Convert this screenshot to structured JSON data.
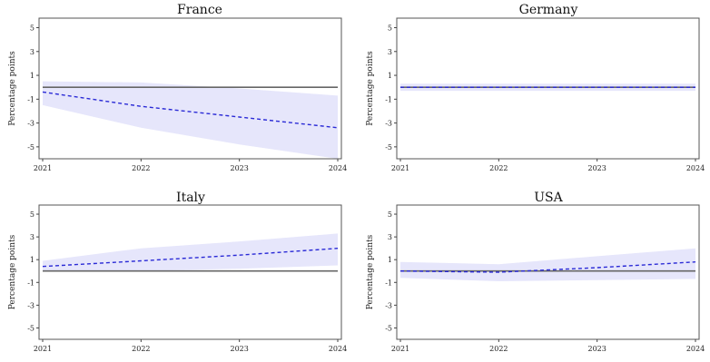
{
  "chart_data": [
    {
      "type": "line",
      "title": "France",
      "ylabel": "Percentage points",
      "x": [
        2021,
        2022,
        2023,
        2024
      ],
      "xticks": [
        "2021",
        "2022",
        "2023",
        "2024"
      ],
      "yticks": [
        5,
        3,
        1,
        -1,
        -3,
        -5
      ],
      "ylim": [
        -6,
        5.8
      ],
      "series": [
        {
          "values": [
            0,
            0,
            0,
            0
          ]
        },
        {
          "values": [
            -0.4,
            -1.6,
            -2.5,
            -3.4
          ]
        },
        {
          "lower": [
            -1.5,
            -3.4,
            -4.8,
            -6.0
          ],
          "upper": [
            0.5,
            0.4,
            -0.1,
            -0.7
          ]
        }
      ]
    },
    {
      "type": "line",
      "title": "Germany",
      "ylabel": "Percentage points",
      "x": [
        2021,
        2022,
        2023,
        2024
      ],
      "xticks": [
        "2021",
        "2022",
        "2023",
        "2024"
      ],
      "yticks": [
        5,
        3,
        1,
        -1,
        -3,
        -5
      ],
      "ylim": [
        -6,
        5.8
      ],
      "series": [
        {
          "values": [
            0,
            0,
            0,
            0
          ]
        },
        {
          "values": [
            0,
            0,
            0,
            0
          ]
        },
        {
          "lower": [
            -0.3,
            -0.3,
            -0.3,
            -0.3
          ],
          "upper": [
            0.3,
            0.3,
            0.3,
            0.3
          ]
        }
      ]
    },
    {
      "type": "line",
      "title": "Italy",
      "ylabel": "Percentage points",
      "x": [
        2021,
        2022,
        2023,
        2024
      ],
      "xticks": [
        "2021",
        "2022",
        "2023",
        "2024"
      ],
      "yticks": [
        5,
        3,
        1,
        -1,
        -3,
        -5
      ],
      "ylim": [
        -6,
        5.8
      ],
      "series": [
        {
          "values": [
            0,
            0,
            0,
            0
          ]
        },
        {
          "values": [
            0.4,
            0.9,
            1.4,
            2.0
          ]
        },
        {
          "lower": [
            0.0,
            0.0,
            0.2,
            0.5
          ],
          "upper": [
            0.9,
            2.0,
            2.6,
            3.3
          ]
        }
      ]
    },
    {
      "type": "line",
      "title": "USA",
      "ylabel": "Percentage points",
      "x": [
        2021,
        2022,
        2023,
        2024
      ],
      "xticks": [
        "2021",
        "2022",
        "2023",
        "2024"
      ],
      "yticks": [
        5,
        3,
        1,
        -1,
        -3,
        -5
      ],
      "ylim": [
        -6,
        5.8
      ],
      "series": [
        {
          "values": [
            0,
            0,
            0,
            0
          ]
        },
        {
          "values": [
            0,
            -0.1,
            0.3,
            0.8
          ]
        },
        {
          "lower": [
            -0.6,
            -0.9,
            -0.8,
            -0.7
          ],
          "upper": [
            0.8,
            0.6,
            1.3,
            2.0
          ]
        }
      ]
    }
  ],
  "colors": {
    "band": "#e6e6fb",
    "estimate": "#2a2ad6",
    "baseline": "#666666"
  }
}
